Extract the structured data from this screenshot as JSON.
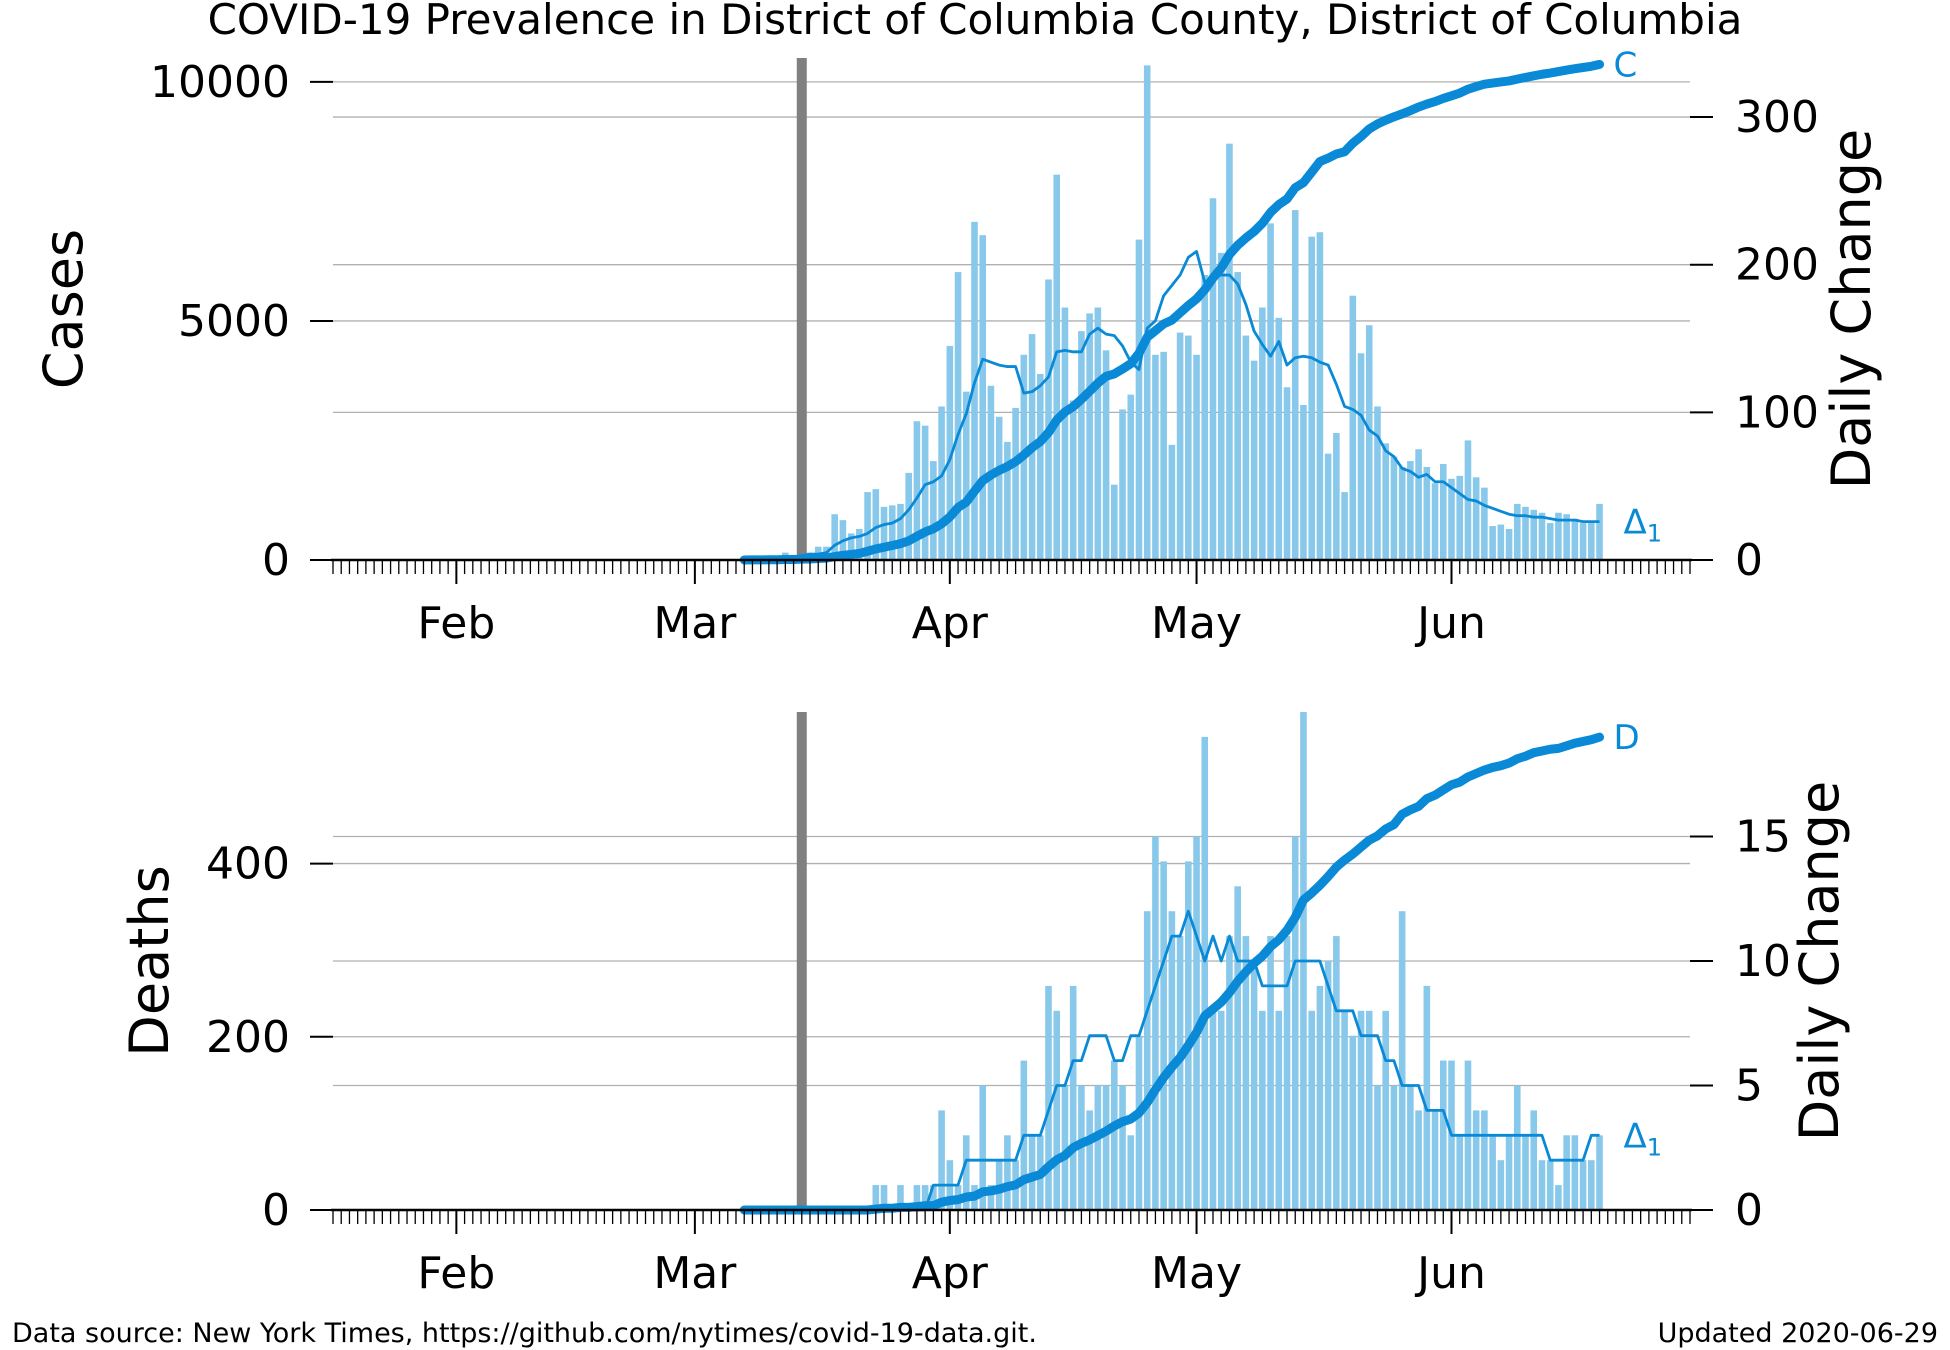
{
  "title": "COVID-19 Prevalence in District of Columbia County, District of Columbia",
  "footer": {
    "source": "Data source: New York Times, https://github.com/nytimes/covid-19-data.git.",
    "updated": "Updated 2020-06-29"
  },
  "colors": {
    "accent": "#0a8ad6",
    "bar": "#88c8ea",
    "marker": "#808080",
    "grid": "#b0b0b0"
  },
  "chart_data": [
    {
      "type": "bar+line",
      "ylabel_left": "Cases",
      "ylabel_right": "Daily Change",
      "cumulative_label": "C",
      "delta_label": "Δ",
      "delta_sub": "1",
      "xticks": [
        "Feb",
        "Mar",
        "Apr",
        "May",
        "Jun"
      ],
      "xtick_dates": [
        "2020-02-01",
        "2020-03-01",
        "2020-04-01",
        "2020-05-01",
        "2020-06-01"
      ],
      "x_range": [
        "2020-01-17",
        "2020-06-30"
      ],
      "marker_date": "2020-03-14",
      "yticks_left": [
        0,
        5000,
        10000
      ],
      "ylim_left": [
        0,
        10500
      ],
      "yticks_right": [
        0,
        100,
        200,
        300
      ],
      "ylim_right": [
        0,
        340
      ],
      "first_date": "2020-03-07",
      "cumulative": [
        1,
        2,
        2,
        4,
        5,
        10,
        10,
        17,
        22,
        31,
        40,
        71,
        98,
        116,
        137,
        183,
        231,
        267,
        304,
        342,
        401,
        495,
        586,
        653,
        757,
        902,
        1097,
        1211,
        1440,
        1660,
        1778,
        1875,
        1955,
        2058,
        2197,
        2350,
        2476,
        2666,
        2927,
        3098,
        3206,
        3361,
        3528,
        3699,
        3841,
        3892,
        3994,
        4106,
        4323,
        4658,
        4797,
        4938,
        5016,
        5170,
        5322,
        5461,
        5654,
        5899,
        6107,
        6389,
        6584,
        6736,
        6871,
        7042,
        7270,
        7434,
        7551,
        7788,
        7893,
        8112,
        8334,
        8406,
        8492,
        8538,
        8717,
        8857,
        9016,
        9120,
        9199,
        9269,
        9332,
        9399,
        9474,
        9537,
        9589,
        9654,
        9709,
        9766,
        9847,
        9903,
        9952,
        9975,
        9999,
        10020,
        10058,
        10094,
        10128,
        10160,
        10185,
        10217,
        10248,
        10276,
        10301,
        10327,
        10365
      ],
      "daily": [
        1,
        1,
        0,
        2,
        1,
        5,
        0,
        7,
        5,
        9,
        9,
        31,
        27,
        18,
        21,
        46,
        48,
        36,
        37,
        38,
        59,
        94,
        91,
        67,
        104,
        145,
        195,
        114,
        229,
        220,
        118,
        97,
        80,
        103,
        139,
        153,
        126,
        190,
        261,
        171,
        108,
        155,
        167,
        171,
        142,
        51,
        102,
        112,
        217,
        335,
        139,
        141,
        78,
        154,
        152,
        139,
        193,
        245,
        208,
        282,
        195,
        152,
        135,
        171,
        228,
        164,
        117,
        237,
        105,
        219,
        222,
        72,
        86,
        46,
        179,
        140,
        159,
        104,
        79,
        70,
        63,
        67,
        75,
        63,
        52,
        65,
        55,
        57,
        81,
        56,
        49,
        23,
        24,
        21,
        38,
        36,
        34,
        32,
        25,
        32,
        31,
        28,
        25,
        26,
        38
      ],
      "avg": [
        1,
        1,
        1,
        1,
        2,
        2,
        2,
        3,
        4,
        4,
        5,
        10,
        13,
        15,
        16,
        18,
        22,
        24,
        25,
        28,
        34,
        42,
        51,
        53,
        57,
        68,
        85,
        99,
        120,
        136,
        134,
        132,
        131,
        131,
        113,
        114,
        118,
        124,
        141,
        142,
        141,
        141,
        153,
        157,
        153,
        152,
        145,
        134,
        129,
        157,
        162,
        179,
        186,
        193,
        205,
        209,
        188,
        192,
        193,
        193,
        187,
        173,
        155,
        146,
        138,
        148,
        132,
        137,
        138,
        137,
        134,
        132,
        119,
        104,
        102,
        98,
        88,
        84,
        74,
        70,
        62,
        60,
        56,
        58,
        53,
        53,
        49,
        45,
        41,
        40,
        37,
        35,
        33,
        31,
        30,
        30,
        29,
        29,
        28,
        27,
        27,
        27,
        26,
        26,
        26
      ]
    },
    {
      "type": "bar+line",
      "ylabel_left": "Deaths",
      "ylabel_right": "Daily Change",
      "cumulative_label": "D",
      "delta_label": "Δ",
      "delta_sub": "1",
      "xticks": [
        "Feb",
        "Mar",
        "Apr",
        "May",
        "Jun"
      ],
      "xtick_dates": [
        "2020-02-01",
        "2020-03-01",
        "2020-04-01",
        "2020-05-01",
        "2020-06-01"
      ],
      "x_range": [
        "2020-01-17",
        "2020-06-30"
      ],
      "marker_date": "2020-03-14",
      "yticks_left": [
        0,
        200,
        400
      ],
      "ylim_left": [
        0,
        575
      ],
      "yticks_right": [
        0,
        5,
        10,
        15
      ],
      "ylim_right": [
        0,
        20
      ],
      "first_date": "2020-03-07",
      "cumulative": [
        0,
        0,
        0,
        0,
        0,
        0,
        0,
        0,
        0,
        0,
        0,
        0,
        0,
        0,
        0,
        0,
        1,
        2,
        2,
        3,
        3,
        4,
        5,
        5,
        9,
        11,
        12,
        15,
        16,
        21,
        22,
        24,
        27,
        29,
        35,
        38,
        41,
        50,
        58,
        63,
        72,
        77,
        81,
        86,
        91,
        97,
        102,
        105,
        112,
        124,
        139,
        153,
        165,
        176,
        190,
        205,
        224,
        232,
        240,
        251,
        264,
        275,
        285,
        293,
        304,
        312,
        323,
        338,
        358,
        366,
        375,
        385,
        396,
        404,
        411,
        419,
        427,
        432,
        440,
        445,
        457,
        462,
        466,
        475,
        479,
        485,
        491,
        494,
        500,
        504,
        508,
        511,
        513,
        516,
        521,
        524,
        528,
        530,
        532,
        533,
        536,
        539,
        541,
        543,
        546
      ],
      "daily": [
        0,
        0,
        0,
        0,
        0,
        0,
        0,
        0,
        0,
        0,
        0,
        0,
        0,
        0,
        0,
        0,
        1,
        1,
        0,
        1,
        0,
        1,
        1,
        1,
        4,
        2,
        1,
        3,
        1,
        5,
        1,
        2,
        3,
        2,
        6,
        3,
        3,
        9,
        8,
        5,
        9,
        5,
        4,
        5,
        5,
        6,
        5,
        3,
        7,
        12,
        15,
        14,
        12,
        11,
        14,
        15,
        19,
        8,
        8,
        11,
        13,
        11,
        10,
        8,
        11,
        8,
        11,
        15,
        20,
        8,
        9,
        10,
        11,
        8,
        7,
        8,
        8,
        5,
        8,
        5,
        12,
        5,
        4,
        9,
        4,
        6,
        6,
        3,
        6,
        4,
        4,
        3,
        2,
        3,
        5,
        3,
        4,
        2,
        2,
        1,
        3,
        3,
        2,
        2,
        3
      ],
      "avg": [
        0,
        0,
        0,
        0,
        0,
        0,
        0,
        0,
        0,
        0,
        0,
        0,
        0,
        0,
        0,
        0,
        0,
        0,
        0,
        0,
        0,
        0,
        0,
        1,
        1,
        1,
        1,
        2,
        2,
        2,
        2,
        2,
        2,
        2,
        3,
        3,
        3,
        4,
        5,
        5,
        6,
        6,
        7,
        7,
        7,
        6,
        6,
        7,
        7,
        8,
        9,
        10,
        11,
        11,
        12,
        11,
        10,
        11,
        10,
        11,
        10,
        10,
        10,
        9,
        9,
        9,
        9,
        10,
        10,
        10,
        10,
        9,
        8,
        8,
        8,
        7,
        7,
        7,
        6,
        6,
        5,
        5,
        5,
        4,
        4,
        4,
        3,
        3,
        3,
        3,
        3,
        3,
        3,
        3,
        3,
        3,
        3,
        3,
        2,
        2,
        2,
        2,
        2,
        3,
        3
      ]
    }
  ]
}
